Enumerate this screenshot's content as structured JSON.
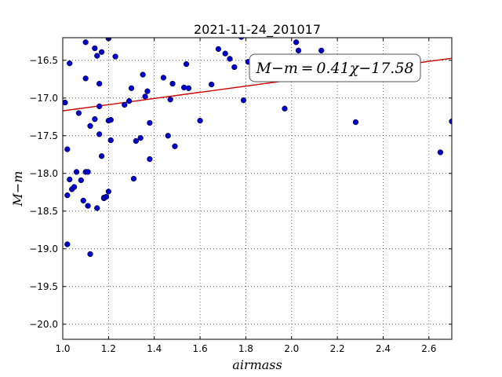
{
  "chart_data": {
    "type": "scatter",
    "title": "2021-11-24_201017",
    "xlabel": "airmass",
    "ylabel": "M−m",
    "xlim": [
      1.0,
      2.7
    ],
    "ylim": [
      -20.2,
      -16.2
    ],
    "x_ticks": [
      1.0,
      1.2,
      1.4,
      1.6,
      1.8,
      2.0,
      2.2,
      2.4,
      2.6
    ],
    "x_tick_labels": [
      "1.0",
      "1.2",
      "1.4",
      "1.6",
      "1.8",
      "2.0",
      "2.2",
      "2.4",
      "2.6"
    ],
    "y_ticks": [
      -16.5,
      -17.0,
      -17.5,
      -18.0,
      -18.5,
      -19.0,
      -19.5,
      -20.0
    ],
    "y_tick_labels": [
      "−16.5",
      "−17.0",
      "−17.5",
      "−18.0",
      "−18.5",
      "−19.0",
      "−19.5",
      "−20.0"
    ],
    "grid": true,
    "points": {
      "color": "#0000cc",
      "x": [
        1.01,
        1.02,
        1.02,
        1.02,
        1.03,
        1.03,
        1.04,
        1.05,
        1.06,
        1.07,
        1.08,
        1.09,
        1.1,
        1.1,
        1.1,
        1.11,
        1.11,
        1.12,
        1.12,
        1.14,
        1.14,
        1.15,
        1.15,
        1.16,
        1.16,
        1.16,
        1.17,
        1.17,
        1.18,
        1.18,
        1.19,
        1.2,
        1.2,
        1.2,
        1.21,
        1.21,
        1.23,
        1.27,
        1.29,
        1.3,
        1.31,
        1.32,
        1.34,
        1.35,
        1.36,
        1.37,
        1.38,
        1.38,
        1.44,
        1.46,
        1.47,
        1.48,
        1.49,
        1.53,
        1.54,
        1.55,
        1.6,
        1.65,
        1.68,
        1.71,
        1.73,
        1.75,
        1.78,
        1.79,
        1.81,
        1.97,
        2.02,
        2.03,
        2.13,
        2.28,
        2.65,
        2.7
      ],
      "y": [
        -17.06,
        -18.29,
        -17.68,
        -18.94,
        -18.08,
        -16.54,
        -18.21,
        -18.18,
        -17.98,
        -17.2,
        -18.09,
        -18.36,
        -16.26,
        -16.74,
        -17.98,
        -17.98,
        -18.43,
        -17.37,
        -19.07,
        -16.34,
        -17.28,
        -16.44,
        -18.46,
        -17.11,
        -16.81,
        -17.48,
        -16.39,
        -17.77,
        -18.33,
        -18.32,
        -18.31,
        -16.21,
        -17.3,
        -18.24,
        -17.29,
        -17.56,
        -16.45,
        -17.09,
        -17.04,
        -16.87,
        -18.07,
        -17.57,
        -17.53,
        -16.69,
        -16.98,
        -16.91,
        -17.33,
        -17.81,
        -16.73,
        -17.5,
        -17.02,
        -16.81,
        -17.64,
        -16.86,
        -16.55,
        -16.87,
        -17.3,
        -16.82,
        -16.35,
        -16.41,
        -16.48,
        -16.59,
        -16.19,
        -17.03,
        -16.52,
        -17.14,
        -16.26,
        -16.37,
        -16.37,
        -17.32,
        -17.72,
        -17.31
      ]
    },
    "fit_line": {
      "color": "#cc0000",
      "slope": 0.41,
      "intercept": -17.58,
      "x_range": [
        1.0,
        2.7
      ]
    },
    "annotation": "M−m = 0.41χ−17.58"
  }
}
